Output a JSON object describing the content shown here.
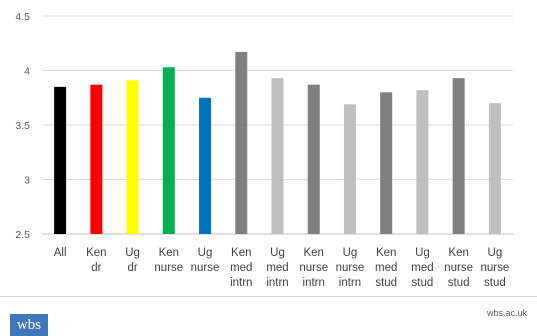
{
  "chart_data": {
    "type": "bar",
    "title": "",
    "xlabel": "",
    "ylabel": "",
    "ylim": [
      2.5,
      4.5
    ],
    "yticks": [
      "2.5",
      "3",
      "3.5",
      "4",
      "4.5"
    ],
    "grid": true,
    "legend": "none",
    "categories": [
      [
        "All"
      ],
      [
        "Ken",
        "dr"
      ],
      [
        "Ug",
        "dr"
      ],
      [
        "Ken",
        "nurse"
      ],
      [
        "Ug",
        "nurse"
      ],
      [
        "Ken",
        "med",
        "intrn"
      ],
      [
        "Ug",
        "med",
        "intrn"
      ],
      [
        "Ken",
        "nurse",
        "intrn"
      ],
      [
        "Ug",
        "nurse",
        "intrn"
      ],
      [
        "Ken",
        "med",
        "stud"
      ],
      [
        "Ug",
        "med",
        "stud"
      ],
      [
        "Ken",
        "nurse",
        "stud"
      ],
      [
        "Ug",
        "nurse",
        "stud"
      ]
    ],
    "values": [
      3.85,
      3.87,
      3.91,
      4.03,
      3.75,
      4.17,
      3.93,
      3.87,
      3.69,
      3.8,
      3.82,
      3.93,
      3.7
    ],
    "colors": [
      "#000000",
      "#ff0000",
      "#ffff00",
      "#00b050",
      "#0070c0",
      "#7f7f7f",
      "#bfbfbf",
      "#7f7f7f",
      "#bfbfbf",
      "#7f7f7f",
      "#bfbfbf",
      "#7f7f7f",
      "#bfbfbf"
    ]
  },
  "footer": {
    "logo_text": "wbs",
    "site_text": "wbs.ac.uk"
  }
}
